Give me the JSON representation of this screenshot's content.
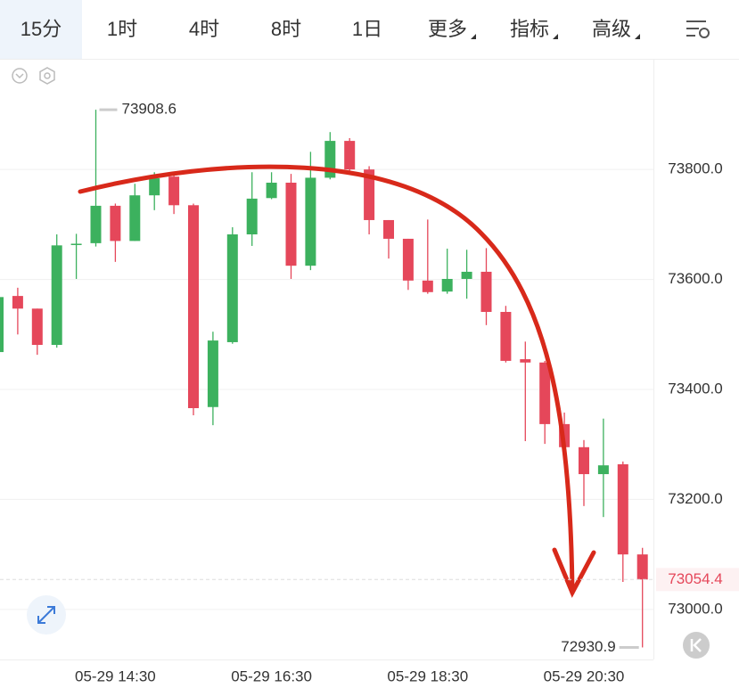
{
  "toolbar": {
    "tabs": [
      "15分",
      "1时",
      "4时",
      "8时",
      "1日",
      "更多",
      "指标",
      "高级"
    ]
  },
  "chart_data": {
    "type": "candlestick",
    "categories": [
      null,
      null,
      null,
      null,
      null,
      null,
      "05-29 14:30",
      null,
      null,
      null,
      null,
      null,
      null,
      null,
      "05-29 16:30",
      null,
      null,
      null,
      null,
      null,
      null,
      null,
      "05-29 18:30",
      null,
      null,
      null,
      null,
      null,
      null,
      null,
      "05-29 20:30",
      null,
      null,
      null
    ],
    "open": [
      73468,
      73570,
      73547,
      73481,
      73663,
      73666,
      73734,
      73670,
      73753,
      73787,
      73735,
      73368,
      73486,
      73682,
      73748,
      73776,
      73625,
      73785,
      73852,
      73800,
      73708,
      73674,
      73598,
      73578,
      73601,
      73614,
      73541,
      73455,
      73449,
      73337,
      73295,
      73246,
      73264,
      73100
    ],
    "high": [
      73581,
      73585,
      73547,
      73682,
      73683,
      73908.6,
      73738,
      73774,
      73795,
      73795,
      73738,
      73505,
      73695,
      73795,
      73795,
      73792,
      73832,
      73868,
      73857,
      73806,
      73708,
      73674,
      73709,
      73656,
      73654,
      73657,
      73552,
      73487,
      73452,
      73358,
      73308,
      73347,
      73269,
      73112
    ],
    "low": [
      73465,
      73500,
      73463,
      73476,
      73601,
      73660,
      73632,
      73670,
      73726,
      73719,
      73353,
      73335,
      73483,
      73661,
      73746,
      73601,
      73617,
      73782,
      73792,
      73682,
      73638,
      73581,
      73574,
      73574,
      73565,
      73517,
      73449,
      73306,
      73301,
      73277,
      73188,
      73168,
      73050,
      72930.9
    ],
    "close": [
      73568,
      73547,
      73481,
      73662,
      73665,
      73734,
      73670,
      73753,
      73784,
      73735,
      73366,
      73489,
      73682,
      73747,
      73776,
      73625,
      73785,
      73852,
      73800,
      73708,
      73674,
      73598,
      73577,
      73601,
      73614,
      73541,
      73452,
      73449,
      73337,
      73295,
      73246,
      73262,
      73100,
      73054.4
    ],
    "up_color": "#3cb15e",
    "down_color": "#e5475a",
    "ylim": [
      72909,
      73998
    ],
    "yticks": [
      {
        "value": 73000,
        "label": "73000.0"
      },
      {
        "value": 73200,
        "label": "73200.0"
      },
      {
        "value": 73400,
        "label": "73400.0"
      },
      {
        "value": 73600,
        "label": "73600.0"
      },
      {
        "value": 73800,
        "label": "73800.0"
      }
    ],
    "grid": true
  }
}
